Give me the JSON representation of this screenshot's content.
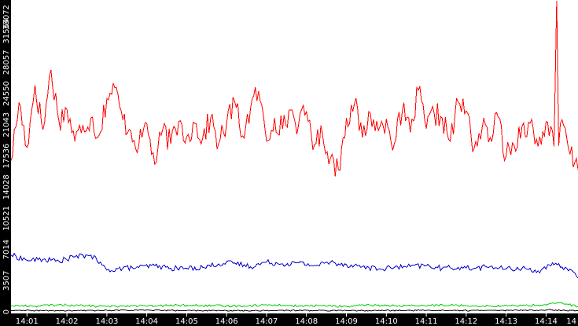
{
  "chart_data": {
    "type": "line",
    "title": "",
    "xlabel": "",
    "ylabel": "",
    "ylim": [
      0,
      35072
    ],
    "xlim": [
      "14:00:36",
      "14:14:48"
    ],
    "grid": false,
    "legend": "none",
    "colors": {
      "background": "#ffffff",
      "axis_band": "#000000",
      "tick_text": "#ffffff"
    },
    "y_ticks": [
      0,
      3507,
      7014,
      10521,
      14028,
      17536,
      21043,
      24550,
      28057,
      31564,
      35072
    ],
    "y_tick_labels": [
      "0",
      "3507",
      "7014",
      "10521",
      "14028",
      "17536",
      "21043",
      "24550",
      "28057",
      "31564",
      "35072"
    ],
    "x_ticks": [
      "14:01",
      "14:02",
      "14:03",
      "14:04",
      "14:05",
      "14:06",
      "14:07",
      "14:08",
      "14:09",
      "14:10",
      "14:11",
      "14:12",
      "14:13",
      "14:14",
      "14"
    ],
    "series": [
      {
        "color": "#ff0000",
        "x": [
          "14:00:36",
          "14:00:48",
          "14:01:00",
          "14:01:12",
          "14:01:24",
          "14:01:36",
          "14:01:48",
          "14:02:00",
          "14:02:12",
          "14:02:24",
          "14:02:36",
          "14:02:48",
          "14:03:00",
          "14:03:12",
          "14:03:24",
          "14:03:36",
          "14:03:48",
          "14:04:00",
          "14:04:12",
          "14:04:24",
          "14:04:36",
          "14:04:48",
          "14:05:00",
          "14:05:12",
          "14:05:24",
          "14:05:36",
          "14:05:48",
          "14:06:00",
          "14:06:12",
          "14:06:24",
          "14:06:36",
          "14:06:48",
          "14:07:00",
          "14:07:12",
          "14:07:24",
          "14:07:36",
          "14:07:48",
          "14:08:00",
          "14:08:12",
          "14:08:24",
          "14:08:36",
          "14:08:48",
          "14:09:00",
          "14:09:12",
          "14:09:24",
          "14:09:36",
          "14:09:48",
          "14:10:00",
          "14:10:12",
          "14:10:24",
          "14:10:36",
          "14:10:48",
          "14:11:00",
          "14:11:12",
          "14:11:24",
          "14:11:36",
          "14:11:48",
          "14:12:00",
          "14:12:12",
          "14:12:24",
          "14:12:36",
          "14:12:48",
          "14:13:00",
          "14:13:12",
          "14:13:24",
          "14:13:36",
          "14:13:48",
          "14:14:00",
          "14:14:12",
          "14:14:16",
          "14:14:19",
          "14:14:24",
          "14:14:36",
          "14:14:48"
        ],
        "values": [
          17000,
          23500,
          18500,
          25500,
          20500,
          27200,
          21500,
          22800,
          19200,
          21000,
          21800,
          19800,
          24000,
          25200,
          21600,
          20400,
          18700,
          21200,
          16600,
          20500,
          18900,
          21400,
          19700,
          21200,
          19500,
          21800,
          18900,
          21200,
          23700,
          19800,
          22900,
          24800,
          19200,
          21800,
          20600,
          22700,
          21000,
          22500,
          18800,
          20000,
          17300,
          16000,
          21800,
          23400,
          19600,
          22300,
          20400,
          21700,
          18900,
          22600,
          20200,
          24900,
          20600,
          22300,
          21800,
          19200,
          23600,
          22600,
          18400,
          20700,
          19600,
          21900,
          17500,
          18700,
          20900,
          21200,
          18600,
          21400,
          18600,
          35000,
          18700,
          21600,
          17700,
          16000
        ]
      },
      {
        "color": "#0000cc",
        "x": [
          "14:00:36",
          "14:01:00",
          "14:01:24",
          "14:01:48",
          "14:02:12",
          "14:02:36",
          "14:03:00",
          "14:03:24",
          "14:03:48",
          "14:04:12",
          "14:04:36",
          "14:05:00",
          "14:05:24",
          "14:05:48",
          "14:06:12",
          "14:06:36",
          "14:07:00",
          "14:07:24",
          "14:07:48",
          "14:08:12",
          "14:08:36",
          "14:09:00",
          "14:09:24",
          "14:09:48",
          "14:10:12",
          "14:10:36",
          "14:11:00",
          "14:11:24",
          "14:11:48",
          "14:12:12",
          "14:12:36",
          "14:13:00",
          "14:13:24",
          "14:13:48",
          "14:14:12",
          "14:14:36",
          "14:14:48"
        ],
        "values": [
          6400,
          5800,
          5900,
          5700,
          6200,
          6400,
          4700,
          4900,
          5000,
          5200,
          4900,
          4900,
          5000,
          5400,
          5500,
          5100,
          5600,
          5400,
          5500,
          5200,
          5600,
          5300,
          5100,
          4800,
          5000,
          5100,
          5200,
          4900,
          5000,
          4900,
          5100,
          4800,
          4900,
          4600,
          5300,
          4800,
          3800
        ]
      },
      {
        "color": "#00cc00",
        "x": [
          "14:00:36",
          "14:01:12",
          "14:01:48",
          "14:02:24",
          "14:03:00",
          "14:03:36",
          "14:04:12",
          "14:04:48",
          "14:05:24",
          "14:06:00",
          "14:06:36",
          "14:07:12",
          "14:07:48",
          "14:08:24",
          "14:09:00",
          "14:09:36",
          "14:10:12",
          "14:10:48",
          "14:11:24",
          "14:12:00",
          "14:12:36",
          "14:13:12",
          "14:13:48",
          "14:14:24",
          "14:14:48"
        ],
        "values": [
          700,
          650,
          800,
          700,
          600,
          700,
          650,
          750,
          700,
          650,
          700,
          800,
          650,
          700,
          600,
          750,
          700,
          650,
          800,
          700,
          650,
          700,
          750,
          1000,
          600
        ]
      },
      {
        "color": "#000000",
        "x": [
          "14:00:36",
          "14:02:00",
          "14:03:30",
          "14:05:00",
          "14:06:30",
          "14:08:00",
          "14:09:30",
          "14:11:00",
          "14:12:30",
          "14:14:00",
          "14:14:48"
        ],
        "values": [
          150,
          120,
          180,
          150,
          130,
          160,
          140,
          170,
          150,
          200,
          140
        ]
      }
    ]
  }
}
